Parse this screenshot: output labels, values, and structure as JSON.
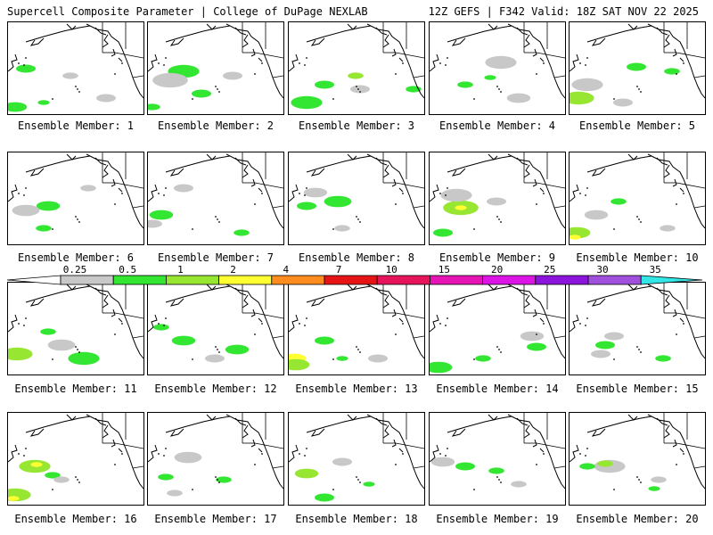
{
  "header": {
    "left_title": "Supercell Composite Parameter | College of DuPage NEXLAB",
    "right_title": "12Z GEFS | F342 Valid: 18Z SAT NOV 22 2025"
  },
  "colorbar": {
    "levels": [
      "0.25",
      "0.5",
      "1",
      "2",
      "4",
      "7",
      "10",
      "15",
      "20",
      "25",
      "30",
      "35"
    ],
    "colors": [
      "#c8c8c8",
      "#32e632",
      "#96e632",
      "#ffff32",
      "#ff8c1e",
      "#e61414",
      "#e6145a",
      "#e614b4",
      "#dc14e6",
      "#8c14dc",
      "#a050dc",
      "#32e6e6"
    ],
    "left_cap_color": "#ffffff",
    "right_cap_color": "#32e6e6"
  },
  "members": [
    {
      "label": "Ensemble Member: 1",
      "blobs": [
        {
          "c": "#32e632",
          "x": 20,
          "y": 52,
          "r": 5
        },
        {
          "c": "#c8c8c8",
          "x": 70,
          "y": 60,
          "r": 4
        },
        {
          "c": "#32e632",
          "x": 8,
          "y": 95,
          "r": 6
        },
        {
          "c": "#c8c8c8",
          "x": 110,
          "y": 85,
          "r": 5
        },
        {
          "c": "#32e632",
          "x": 40,
          "y": 90,
          "r": 3
        }
      ]
    },
    {
      "label": "Ensemble Member: 2",
      "blobs": [
        {
          "c": "#32e632",
          "x": 40,
          "y": 55,
          "r": 8
        },
        {
          "c": "#c8c8c8",
          "x": 25,
          "y": 65,
          "r": 9
        },
        {
          "c": "#32e632",
          "x": 60,
          "y": 80,
          "r": 5
        },
        {
          "c": "#c8c8c8",
          "x": 95,
          "y": 60,
          "r": 5
        },
        {
          "c": "#32e632",
          "x": 5,
          "y": 95,
          "r": 4
        }
      ]
    },
    {
      "label": "Ensemble Member: 3",
      "blobs": [
        {
          "c": "#32e632",
          "x": 20,
          "y": 90,
          "r": 8
        },
        {
          "c": "#32e632",
          "x": 40,
          "y": 70,
          "r": 5
        },
        {
          "c": "#c8c8c8",
          "x": 80,
          "y": 75,
          "r": 5
        },
        {
          "c": "#96e632",
          "x": 75,
          "y": 60,
          "r": 4
        },
        {
          "c": "#32e632",
          "x": 140,
          "y": 75,
          "r": 4
        }
      ]
    },
    {
      "label": "Ensemble Member: 4",
      "blobs": [
        {
          "c": "#c8c8c8",
          "x": 80,
          "y": 45,
          "r": 8
        },
        {
          "c": "#32e632",
          "x": 40,
          "y": 70,
          "r": 4
        },
        {
          "c": "#c8c8c8",
          "x": 100,
          "y": 85,
          "r": 6
        },
        {
          "c": "#32e632",
          "x": 68,
          "y": 62,
          "r": 3
        }
      ]
    },
    {
      "label": "Ensemble Member: 5",
      "blobs": [
        {
          "c": "#96e632",
          "x": 10,
          "y": 85,
          "r": 8
        },
        {
          "c": "#c8c8c8",
          "x": 20,
          "y": 70,
          "r": 8
        },
        {
          "c": "#32e632",
          "x": 75,
          "y": 50,
          "r": 5
        },
        {
          "c": "#c8c8c8",
          "x": 60,
          "y": 90,
          "r": 5
        },
        {
          "c": "#32e632",
          "x": 115,
          "y": 55,
          "r": 4
        }
      ]
    },
    {
      "label": "Ensemble Member: 6",
      "blobs": [
        {
          "c": "#32e632",
          "x": 45,
          "y": 60,
          "r": 6
        },
        {
          "c": "#c8c8c8",
          "x": 20,
          "y": 65,
          "r": 7
        },
        {
          "c": "#32e632",
          "x": 40,
          "y": 85,
          "r": 4
        },
        {
          "c": "#c8c8c8",
          "x": 90,
          "y": 40,
          "r": 4
        }
      ]
    },
    {
      "label": "Ensemble Member: 7",
      "blobs": [
        {
          "c": "#32e632",
          "x": 15,
          "y": 70,
          "r": 6
        },
        {
          "c": "#c8c8c8",
          "x": 40,
          "y": 40,
          "r": 5
        },
        {
          "c": "#32e632",
          "x": 105,
          "y": 90,
          "r": 4
        },
        {
          "c": "#c8c8c8",
          "x": 5,
          "y": 80,
          "r": 5
        }
      ]
    },
    {
      "label": "Ensemble Member: 8",
      "blobs": [
        {
          "c": "#32e632",
          "x": 55,
          "y": 55,
          "r": 7
        },
        {
          "c": "#c8c8c8",
          "x": 30,
          "y": 45,
          "r": 6
        },
        {
          "c": "#32e632",
          "x": 20,
          "y": 60,
          "r": 5
        },
        {
          "c": "#c8c8c8",
          "x": 60,
          "y": 85,
          "r": 4
        }
      ]
    },
    {
      "label": "Ensemble Member: 9",
      "blobs": [
        {
          "c": "#96e632",
          "x": 35,
          "y": 62,
          "r": 9
        },
        {
          "c": "#ffff32",
          "x": 35,
          "y": 62,
          "r": 3
        },
        {
          "c": "#c8c8c8",
          "x": 30,
          "y": 48,
          "r": 8
        },
        {
          "c": "#32e632",
          "x": 15,
          "y": 90,
          "r": 5
        },
        {
          "c": "#c8c8c8",
          "x": 75,
          "y": 55,
          "r": 5
        }
      ]
    },
    {
      "label": "Ensemble Member: 10",
      "blobs": [
        {
          "c": "#96e632",
          "x": 8,
          "y": 90,
          "r": 7
        },
        {
          "c": "#ffff32",
          "x": 6,
          "y": 95,
          "r": 3
        },
        {
          "c": "#c8c8c8",
          "x": 30,
          "y": 70,
          "r": 6
        },
        {
          "c": "#32e632",
          "x": 55,
          "y": 55,
          "r": 4
        },
        {
          "c": "#c8c8c8",
          "x": 110,
          "y": 85,
          "r": 4
        }
      ]
    },
    {
      "label": "Ensemble Member: 11",
      "blobs": [
        {
          "c": "#96e632",
          "x": 10,
          "y": 80,
          "r": 8
        },
        {
          "c": "#32e632",
          "x": 85,
          "y": 85,
          "r": 8
        },
        {
          "c": "#c8c8c8",
          "x": 60,
          "y": 70,
          "r": 7
        },
        {
          "c": "#32e632",
          "x": 45,
          "y": 55,
          "r": 4
        }
      ]
    },
    {
      "label": "Ensemble Member: 12",
      "blobs": [
        {
          "c": "#32e632",
          "x": 40,
          "y": 65,
          "r": 6
        },
        {
          "c": "#32e632",
          "x": 100,
          "y": 75,
          "r": 6
        },
        {
          "c": "#c8c8c8",
          "x": 75,
          "y": 85,
          "r": 5
        },
        {
          "c": "#32e632",
          "x": 15,
          "y": 50,
          "r": 4
        }
      ]
    },
    {
      "label": "Ensemble Member: 13",
      "blobs": [
        {
          "c": "#ffff32",
          "x": 6,
          "y": 85,
          "r": 6
        },
        {
          "c": "#96e632",
          "x": 8,
          "y": 92,
          "r": 7
        },
        {
          "c": "#32e632",
          "x": 40,
          "y": 65,
          "r": 5
        },
        {
          "c": "#c8c8c8",
          "x": 100,
          "y": 85,
          "r": 5
        },
        {
          "c": "#32e632",
          "x": 60,
          "y": 85,
          "r": 3
        }
      ]
    },
    {
      "label": "Ensemble Member: 14",
      "blobs": [
        {
          "c": "#32e632",
          "x": 10,
          "y": 95,
          "r": 7
        },
        {
          "c": "#c8c8c8",
          "x": 115,
          "y": 60,
          "r": 6
        },
        {
          "c": "#32e632",
          "x": 120,
          "y": 72,
          "r": 5
        },
        {
          "c": "#32e632",
          "x": 60,
          "y": 85,
          "r": 4
        }
      ]
    },
    {
      "label": "Ensemble Member: 15",
      "blobs": [
        {
          "c": "#32e632",
          "x": 40,
          "y": 70,
          "r": 5
        },
        {
          "c": "#c8c8c8",
          "x": 35,
          "y": 80,
          "r": 5
        },
        {
          "c": "#32e632",
          "x": 105,
          "y": 85,
          "r": 4
        },
        {
          "c": "#c8c8c8",
          "x": 50,
          "y": 60,
          "r": 5
        }
      ]
    },
    {
      "label": "Ensemble Member: 16",
      "blobs": [
        {
          "c": "#96e632",
          "x": 30,
          "y": 60,
          "r": 8
        },
        {
          "c": "#ffff32",
          "x": 32,
          "y": 58,
          "r": 3
        },
        {
          "c": "#96e632",
          "x": 8,
          "y": 92,
          "r": 8
        },
        {
          "c": "#ffff32",
          "x": 6,
          "y": 96,
          "r": 3
        },
        {
          "c": "#32e632",
          "x": 50,
          "y": 70,
          "r": 4
        },
        {
          "c": "#c8c8c8",
          "x": 60,
          "y": 75,
          "r": 4
        }
      ]
    },
    {
      "label": "Ensemble Member: 17",
      "blobs": [
        {
          "c": "#c8c8c8",
          "x": 45,
          "y": 50,
          "r": 7
        },
        {
          "c": "#32e632",
          "x": 20,
          "y": 72,
          "r": 4
        },
        {
          "c": "#32e632",
          "x": 85,
          "y": 75,
          "r": 4
        },
        {
          "c": "#c8c8c8",
          "x": 30,
          "y": 90,
          "r": 4
        }
      ]
    },
    {
      "label": "Ensemble Member: 18",
      "blobs": [
        {
          "c": "#96e632",
          "x": 20,
          "y": 68,
          "r": 6
        },
        {
          "c": "#32e632",
          "x": 40,
          "y": 95,
          "r": 5
        },
        {
          "c": "#c8c8c8",
          "x": 60,
          "y": 55,
          "r": 5
        },
        {
          "c": "#32e632",
          "x": 90,
          "y": 80,
          "r": 3
        }
      ]
    },
    {
      "label": "Ensemble Member: 19",
      "blobs": [
        {
          "c": "#32e632",
          "x": 40,
          "y": 60,
          "r": 5
        },
        {
          "c": "#c8c8c8",
          "x": 15,
          "y": 55,
          "r": 6
        },
        {
          "c": "#32e632",
          "x": 75,
          "y": 65,
          "r": 4
        },
        {
          "c": "#c8c8c8",
          "x": 100,
          "y": 80,
          "r": 4
        }
      ]
    },
    {
      "label": "Ensemble Member: 20",
      "blobs": [
        {
          "c": "#c8c8c8",
          "x": 45,
          "y": 60,
          "r": 8
        },
        {
          "c": "#96e632",
          "x": 40,
          "y": 57,
          "r": 4
        },
        {
          "c": "#32e632",
          "x": 20,
          "y": 60,
          "r": 4
        },
        {
          "c": "#c8c8c8",
          "x": 100,
          "y": 75,
          "r": 4
        },
        {
          "c": "#32e632",
          "x": 95,
          "y": 85,
          "r": 3
        }
      ]
    }
  ]
}
